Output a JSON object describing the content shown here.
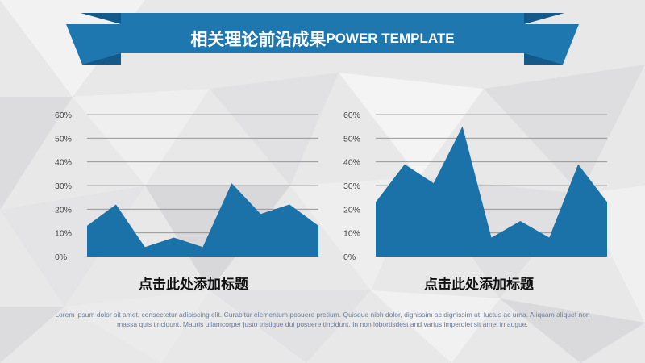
{
  "header": {
    "title_cn": "相关理论前沿成果",
    "title_en": "POWER TEMPLATE"
  },
  "colors": {
    "banner": "#1f77b0",
    "banner_fold": "#135a8a",
    "area_fill": "#1a72a8",
    "gridline": "#8a8a8a",
    "tick_text": "#444444"
  },
  "chart_data": [
    {
      "type": "area",
      "title": "点击此处添加标题",
      "ylim": [
        0,
        60
      ],
      "y_ticks": [
        "0%",
        "10%",
        "20%",
        "30%",
        "40%",
        "50%",
        "60%"
      ],
      "grid": true,
      "series": [
        {
          "values": [
            13,
            22,
            4,
            8,
            4,
            31,
            18,
            22,
            13
          ]
        }
      ]
    },
    {
      "type": "area",
      "title": "点击此处添加标题",
      "ylim": [
        0,
        60
      ],
      "y_ticks": [
        "0%",
        "10%",
        "20%",
        "30%",
        "40%",
        "50%",
        "60%"
      ],
      "grid": true,
      "series": [
        {
          "values": [
            23,
            39,
            31,
            55,
            8,
            15,
            8,
            39,
            23
          ]
        }
      ]
    }
  ],
  "footer": {
    "text": "Lorem ipsum dolor sit amet, consectetur adipiscing elit. Curabitur elementum posuere pretium. Quisque nibh dolor, dignissim ac dignissim ut, luctus ac urna. Aliquam aliquet non massa quis tincidunt. Mauris ullamcorper justo tristique dui posuere tincidunt. In non lobortisdest and varius imperdiet sit amet in augue."
  }
}
